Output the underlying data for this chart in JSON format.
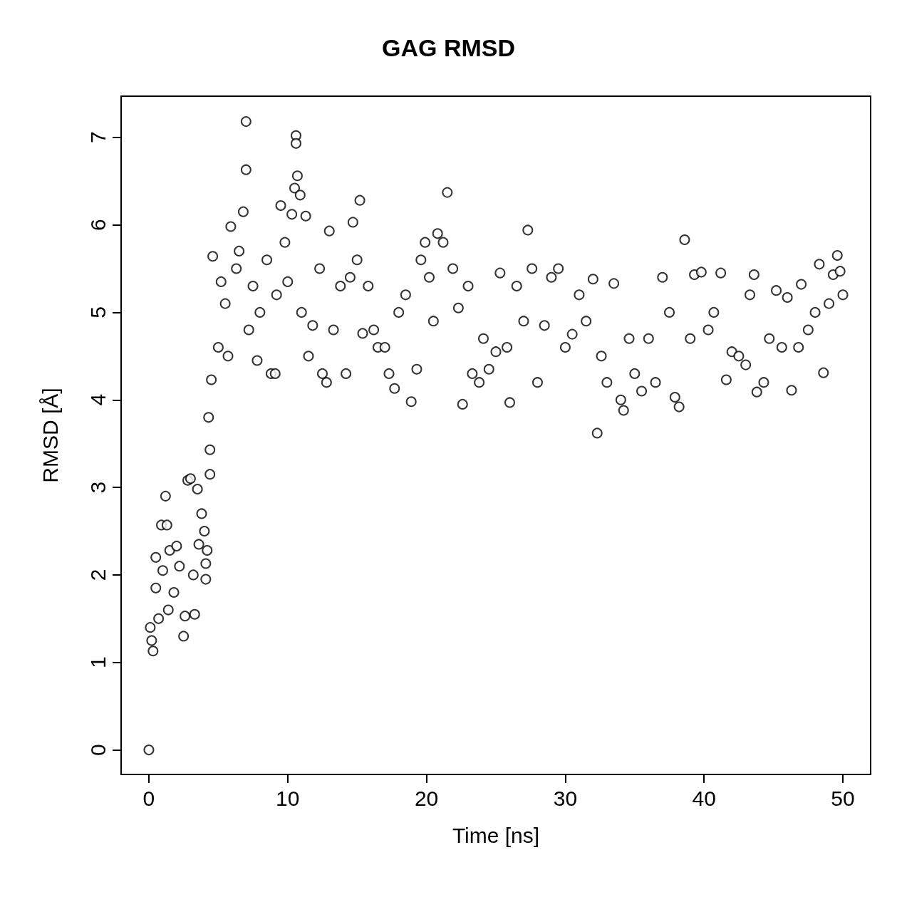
{
  "chart_data": {
    "type": "scatter",
    "title": "GAG RMSD",
    "xlabel": "Time [ns]",
    "ylabel": "RMSD [Å]",
    "xlim": [
      -2,
      52
    ],
    "ylim": [
      -0.28,
      7.47
    ],
    "xticks": [
      0,
      10,
      20,
      30,
      40,
      50
    ],
    "yticks": [
      0,
      1,
      2,
      3,
      4,
      5,
      6,
      7
    ],
    "grid": false,
    "marker": "circle",
    "series": [
      {
        "color": "#000000",
        "x": [
          0,
          0.1,
          0.2,
          0.3,
          0.5,
          0.5,
          0.7,
          0.9,
          1.0,
          1.2,
          1.3,
          1.4,
          1.5,
          1.8,
          2.0,
          2.2,
          2.5,
          2.6,
          2.8,
          3.0,
          3.2,
          3.3,
          3.5,
          3.6,
          3.8,
          4.0,
          4.1,
          4.1,
          4.2,
          4.3,
          4.4,
          4.4,
          4.5,
          4.6,
          5.0,
          5.2,
          5.5,
          5.7,
          5.9,
          6.3,
          6.5,
          6.8,
          7.0,
          7.0,
          7.2,
          7.5,
          7.8,
          8.0,
          8.5,
          8.8,
          9.1,
          9.2,
          9.5,
          9.8,
          10.0,
          10.3,
          10.5,
          10.6,
          10.6,
          10.7,
          10.9,
          11.0,
          11.3,
          11.5,
          11.8,
          12.3,
          12.5,
          12.8,
          13.0,
          13.3,
          13.8,
          14.2,
          14.5,
          14.7,
          15.0,
          15.2,
          15.4,
          15.8,
          16.2,
          16.5,
          17.0,
          17.3,
          17.7,
          18.0,
          18.5,
          18.9,
          19.3,
          19.6,
          19.9,
          20.2,
          20.5,
          20.8,
          21.2,
          21.5,
          21.9,
          22.3,
          22.6,
          23.0,
          23.3,
          23.8,
          24.1,
          24.5,
          25.0,
          25.3,
          25.8,
          26.0,
          26.5,
          27.0,
          27.3,
          27.6,
          28.0,
          28.5,
          29.0,
          29.5,
          30.0,
          30.5,
          31.0,
          31.5,
          32.0,
          32.3,
          32.6,
          33.0,
          33.5,
          34.0,
          34.2,
          34.6,
          35.0,
          35.5,
          36.0,
          36.5,
          37.0,
          37.5,
          37.9,
          38.2,
          38.6,
          39.0,
          39.3,
          39.8,
          40.3,
          40.7,
          41.2,
          41.6,
          42.0,
          42.5,
          43.0,
          43.3,
          43.6,
          43.8,
          44.3,
          44.7,
          45.2,
          45.6,
          46.0,
          46.3,
          46.8,
          47.0,
          47.5,
          48.0,
          48.3,
          48.6,
          49.0,
          49.3,
          49.6,
          49.8,
          50.0
        ],
        "values": [
          0,
          1.4,
          1.25,
          1.13,
          1.85,
          2.2,
          1.5,
          2.57,
          2.05,
          2.9,
          2.57,
          1.6,
          2.28,
          1.8,
          2.33,
          2.1,
          1.3,
          1.53,
          3.08,
          3.1,
          2.0,
          1.55,
          2.98,
          2.35,
          2.7,
          2.5,
          2.13,
          1.95,
          2.28,
          3.8,
          3.43,
          3.15,
          4.23,
          5.64,
          4.6,
          5.35,
          5.1,
          4.5,
          5.98,
          5.5,
          5.7,
          6.15,
          7.18,
          6.63,
          4.8,
          5.3,
          4.45,
          5.0,
          5.6,
          4.3,
          4.3,
          5.2,
          6.22,
          5.8,
          5.35,
          6.12,
          6.42,
          7.02,
          6.93,
          6.56,
          6.34,
          5.0,
          6.1,
          4.5,
          4.85,
          5.5,
          4.3,
          4.2,
          5.93,
          4.8,
          5.3,
          4.3,
          5.4,
          6.03,
          5.6,
          6.28,
          4.76,
          5.3,
          4.8,
          4.6,
          4.6,
          4.3,
          4.13,
          5.0,
          5.2,
          3.98,
          4.35,
          5.6,
          5.8,
          5.4,
          4.9,
          5.9,
          5.8,
          6.37,
          5.5,
          5.05,
          3.95,
          5.3,
          4.3,
          4.2,
          4.7,
          4.35,
          4.55,
          5.45,
          4.6,
          3.97,
          5.3,
          4.9,
          5.94,
          5.5,
          4.2,
          4.85,
          5.4,
          5.5,
          4.6,
          4.75,
          5.2,
          4.9,
          5.38,
          3.62,
          4.5,
          4.2,
          5.33,
          4.0,
          3.88,
          4.7,
          4.3,
          4.1,
          4.7,
          4.2,
          5.4,
          5.0,
          4.03,
          3.92,
          5.83,
          4.7,
          5.43,
          5.46,
          4.8,
          5.0,
          5.45,
          4.23,
          4.55,
          4.5,
          4.4,
          5.2,
          5.43,
          4.09,
          4.2,
          4.7,
          5.25,
          4.6,
          5.17,
          4.11,
          4.6,
          5.32,
          4.8,
          5.0,
          5.55,
          4.31,
          5.1,
          5.43,
          5.65,
          5.47,
          5.2
        ]
      }
    ]
  }
}
